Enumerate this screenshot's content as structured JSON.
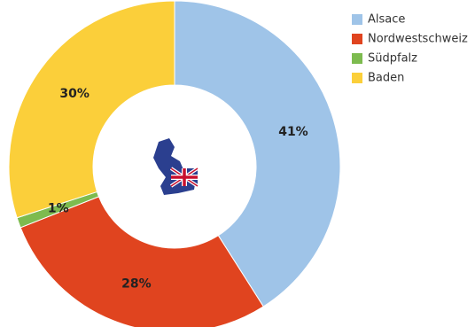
{
  "chart_data": {
    "type": "pie",
    "categories": [
      "Alsace",
      "Nordwestschweiz",
      "Südpfalz",
      "Baden"
    ],
    "values": [
      41,
      28,
      1,
      30
    ],
    "value_labels": [
      "41%",
      "28%",
      "1%",
      "30%"
    ],
    "colors": [
      "#9fc4e8",
      "#e0441f",
      "#7dbb4f",
      "#fbcf3a"
    ],
    "donut": true,
    "legend": "top-right"
  }
}
